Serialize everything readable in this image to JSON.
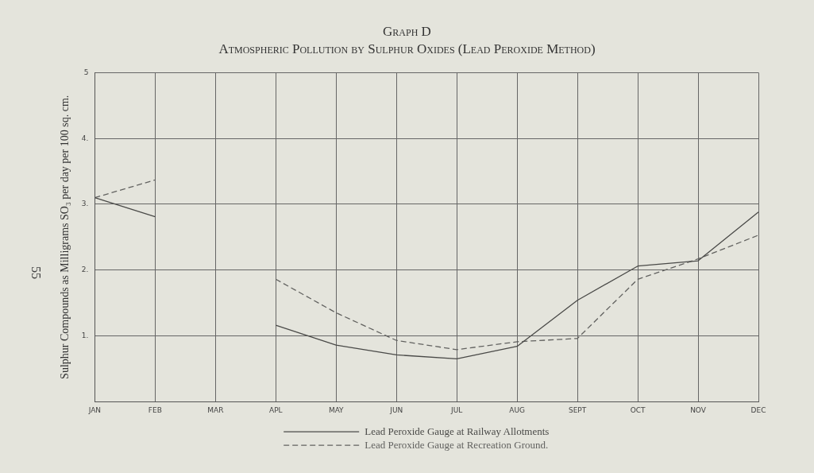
{
  "chart_data": {
    "type": "line",
    "title": "Graph D",
    "subtitle": "Atmospheric Pollution by Sulphur Oxides (Lead Peroxide Method)",
    "ylabel": "Sulphur Compounds as Milligrams SO₃ per day per 100 sq. cm.",
    "categories": [
      "JAN",
      "FEB",
      "MAR",
      "APL",
      "MAY",
      "JUN",
      "JUL",
      "AUG",
      "SEPT",
      "OCT",
      "NOV",
      "DEC"
    ],
    "series": [
      {
        "name": "Lead Peroxide Gauge at Railway Allotments",
        "color": "#4a4a48",
        "line_style": "solid",
        "values": [
          3.1,
          2.81,
          null,
          1.16,
          0.86,
          0.71,
          0.65,
          0.84,
          1.54,
          2.06,
          2.14,
          2.88
        ]
      },
      {
        "name": "Lead Peroxide Gauge at Recreation Ground.",
        "color": "#626260",
        "line_style": "dashed",
        "values": [
          3.1,
          3.37,
          null,
          1.86,
          1.35,
          0.93,
          0.79,
          0.91,
          0.96,
          1.86,
          2.17,
          2.53
        ]
      }
    ],
    "ylim": [
      0,
      5
    ],
    "yticks": [
      {
        "value": 0,
        "label": null
      },
      {
        "value": 1,
        "label": "1."
      },
      {
        "value": 2,
        "label": "2."
      },
      {
        "value": 3,
        "label": "3."
      },
      {
        "value": 4,
        "label": "4."
      },
      5
    ],
    "grid": true,
    "legend": "bottom",
    "marker": "none",
    "annotations": [
      "55"
    ]
  }
}
